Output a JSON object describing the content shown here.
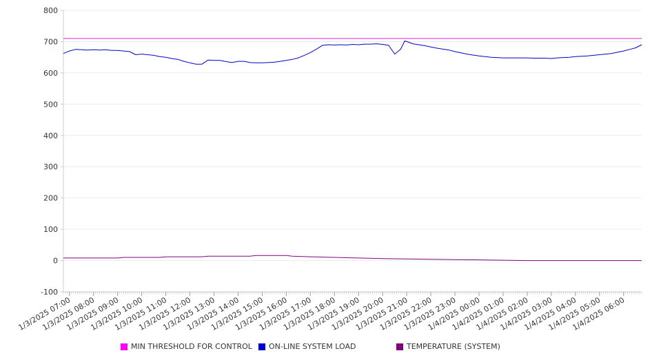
{
  "chart_data": {
    "type": "line",
    "title": "",
    "xlabel": "",
    "ylabel": "",
    "ylim": [
      -100,
      800
    ],
    "yticks": [
      -100,
      0,
      100,
      200,
      300,
      400,
      500,
      600,
      700,
      800
    ],
    "xlim": [
      "1/3/2025 06:45",
      "1/4/2025 06:45"
    ],
    "xtick_labels": [
      "1/3/2025 07:00",
      "1/3/2025 08:00",
      "1/3/2025 09:00",
      "1/3/2025 10:00",
      "1/3/2025 11:00",
      "1/3/2025 12:00",
      "1/3/2025 13:00",
      "1/3/2025 14:00",
      "1/3/2025 15:00",
      "1/3/2025 16:00",
      "1/3/2025 17:00",
      "1/3/2025 18:00",
      "1/3/2025 19:00",
      "1/3/2025 20:00",
      "1/3/2025 21:00",
      "1/3/2025 22:00",
      "1/3/2025 23:00",
      "1/4/2025 00:00",
      "1/4/2025 01:00",
      "1/4/2025 02:00",
      "1/4/2025 03:00",
      "1/4/2025 04:00",
      "1/4/2025 05:00",
      "1/4/2025 06:00"
    ],
    "grid": "horizontal",
    "legend_position": "bottom",
    "series": [
      {
        "name": "MIN THRESHOLD FOR CONTROL",
        "color": "#e020e0",
        "points": [
          [
            "1/3/2025 06:45",
            710
          ],
          [
            "1/4/2025 06:45",
            710
          ]
        ]
      },
      {
        "name": "ON-LINE SYSTEM LOAD",
        "color": "#0000cc",
        "points": [
          [
            "1/3/2025 06:45",
            662
          ],
          [
            "1/3/2025 07:00",
            670
          ],
          [
            "1/3/2025 07:15",
            675
          ],
          [
            "1/3/2025 07:30",
            674
          ],
          [
            "1/3/2025 07:45",
            673
          ],
          [
            "1/3/2025 08:00",
            674
          ],
          [
            "1/3/2025 08:15",
            673
          ],
          [
            "1/3/2025 08:30",
            674
          ],
          [
            "1/3/2025 08:45",
            672
          ],
          [
            "1/3/2025 09:00",
            672
          ],
          [
            "1/3/2025 09:15",
            670
          ],
          [
            "1/3/2025 09:30",
            668
          ],
          [
            "1/3/2025 09:45",
            658
          ],
          [
            "1/3/2025 10:00",
            660
          ],
          [
            "1/3/2025 10:15",
            658
          ],
          [
            "1/3/2025 10:30",
            656
          ],
          [
            "1/3/2025 10:45",
            652
          ],
          [
            "1/3/2025 11:00",
            650
          ],
          [
            "1/3/2025 11:15",
            646
          ],
          [
            "1/3/2025 11:30",
            643
          ],
          [
            "1/3/2025 11:45",
            637
          ],
          [
            "1/3/2025 12:00",
            632
          ],
          [
            "1/3/2025 12:15",
            628
          ],
          [
            "1/3/2025 12:30",
            628
          ],
          [
            "1/3/2025 12:45",
            641
          ],
          [
            "1/3/2025 13:00",
            640
          ],
          [
            "1/3/2025 13:15",
            640
          ],
          [
            "1/3/2025 13:30",
            636
          ],
          [
            "1/3/2025 13:45",
            633
          ],
          [
            "1/3/2025 14:00",
            637
          ],
          [
            "1/3/2025 14:15",
            637
          ],
          [
            "1/3/2025 14:30",
            633
          ],
          [
            "1/3/2025 14:45",
            632
          ],
          [
            "1/3/2025 15:00",
            632
          ],
          [
            "1/3/2025 15:15",
            633
          ],
          [
            "1/3/2025 15:30",
            634
          ],
          [
            "1/3/2025 15:45",
            637
          ],
          [
            "1/3/2025 16:00",
            640
          ],
          [
            "1/3/2025 16:15",
            643
          ],
          [
            "1/3/2025 16:30",
            648
          ],
          [
            "1/3/2025 16:45",
            656
          ],
          [
            "1/3/2025 17:00",
            665
          ],
          [
            "1/3/2025 17:15",
            676
          ],
          [
            "1/3/2025 17:30",
            688
          ],
          [
            "1/3/2025 17:45",
            690
          ],
          [
            "1/3/2025 18:00",
            689
          ],
          [
            "1/3/2025 18:15",
            690
          ],
          [
            "1/3/2025 18:30",
            689
          ],
          [
            "1/3/2025 18:45",
            691
          ],
          [
            "1/3/2025 19:00",
            690
          ],
          [
            "1/3/2025 19:15",
            692
          ],
          [
            "1/3/2025 19:30",
            692
          ],
          [
            "1/3/2025 19:45",
            693
          ],
          [
            "1/3/2025 20:00",
            691
          ],
          [
            "1/3/2025 20:15",
            688
          ],
          [
            "1/3/2025 20:30",
            660
          ],
          [
            "1/3/2025 20:45",
            676
          ],
          [
            "1/3/2025 20:55",
            702
          ],
          [
            "1/3/2025 21:05",
            698
          ],
          [
            "1/3/2025 21:15",
            693
          ],
          [
            "1/3/2025 21:30",
            690
          ],
          [
            "1/3/2025 21:45",
            687
          ],
          [
            "1/3/2025 22:00",
            683
          ],
          [
            "1/3/2025 22:15",
            679
          ],
          [
            "1/3/2025 22:30",
            676
          ],
          [
            "1/3/2025 22:45",
            673
          ],
          [
            "1/3/2025 23:00",
            668
          ],
          [
            "1/3/2025 23:15",
            664
          ],
          [
            "1/3/2025 23:30",
            660
          ],
          [
            "1/3/2025 23:45",
            657
          ],
          [
            "1/4/2025 00:00",
            654
          ],
          [
            "1/4/2025 00:15",
            652
          ],
          [
            "1/4/2025 00:30",
            650
          ],
          [
            "1/4/2025 00:45",
            649
          ],
          [
            "1/4/2025 01:00",
            648
          ],
          [
            "1/4/2025 01:15",
            648
          ],
          [
            "1/4/2025 01:30",
            648
          ],
          [
            "1/4/2025 01:45",
            648
          ],
          [
            "1/4/2025 02:00",
            648
          ],
          [
            "1/4/2025 02:15",
            647
          ],
          [
            "1/4/2025 02:30",
            647
          ],
          [
            "1/4/2025 02:45",
            647
          ],
          [
            "1/4/2025 03:00",
            646
          ],
          [
            "1/4/2025 03:15",
            648
          ],
          [
            "1/4/2025 03:30",
            649
          ],
          [
            "1/4/2025 03:45",
            650
          ],
          [
            "1/4/2025 04:00",
            652
          ],
          [
            "1/4/2025 04:15",
            653
          ],
          [
            "1/4/2025 04:30",
            654
          ],
          [
            "1/4/2025 04:45",
            656
          ],
          [
            "1/4/2025 05:00",
            658
          ],
          [
            "1/4/2025 05:15",
            660
          ],
          [
            "1/4/2025 05:30",
            662
          ],
          [
            "1/4/2025 05:45",
            666
          ],
          [
            "1/4/2025 06:00",
            670
          ],
          [
            "1/4/2025 06:15",
            675
          ],
          [
            "1/4/2025 06:30",
            680
          ],
          [
            "1/4/2025 06:45",
            690
          ]
        ]
      },
      {
        "name": "TEMPERATURE (SYSTEM)",
        "color": "#800080",
        "points": [
          [
            "1/3/2025 06:45",
            8
          ],
          [
            "1/3/2025 09:00",
            8
          ],
          [
            "1/3/2025 09:15",
            10
          ],
          [
            "1/3/2025 10:45",
            10
          ],
          [
            "1/3/2025 11:00",
            12
          ],
          [
            "1/3/2025 12:30",
            12
          ],
          [
            "1/3/2025 12:45",
            14
          ],
          [
            "1/3/2025 14:30",
            14
          ],
          [
            "1/3/2025 14:45",
            16
          ],
          [
            "1/3/2025 16:00",
            16
          ],
          [
            "1/3/2025 16:15",
            14
          ],
          [
            "1/3/2025 17:00",
            12
          ],
          [
            "1/3/2025 18:00",
            10
          ],
          [
            "1/3/2025 19:00",
            8
          ],
          [
            "1/3/2025 20:00",
            6
          ],
          [
            "1/3/2025 21:00",
            5
          ],
          [
            "1/3/2025 22:00",
            4
          ],
          [
            "1/3/2025 23:00",
            3
          ],
          [
            "1/4/2025 00:00",
            2
          ],
          [
            "1/4/2025 01:00",
            1
          ],
          [
            "1/4/2025 02:00",
            0
          ],
          [
            "1/4/2025 06:45",
            0
          ]
        ]
      }
    ]
  }
}
